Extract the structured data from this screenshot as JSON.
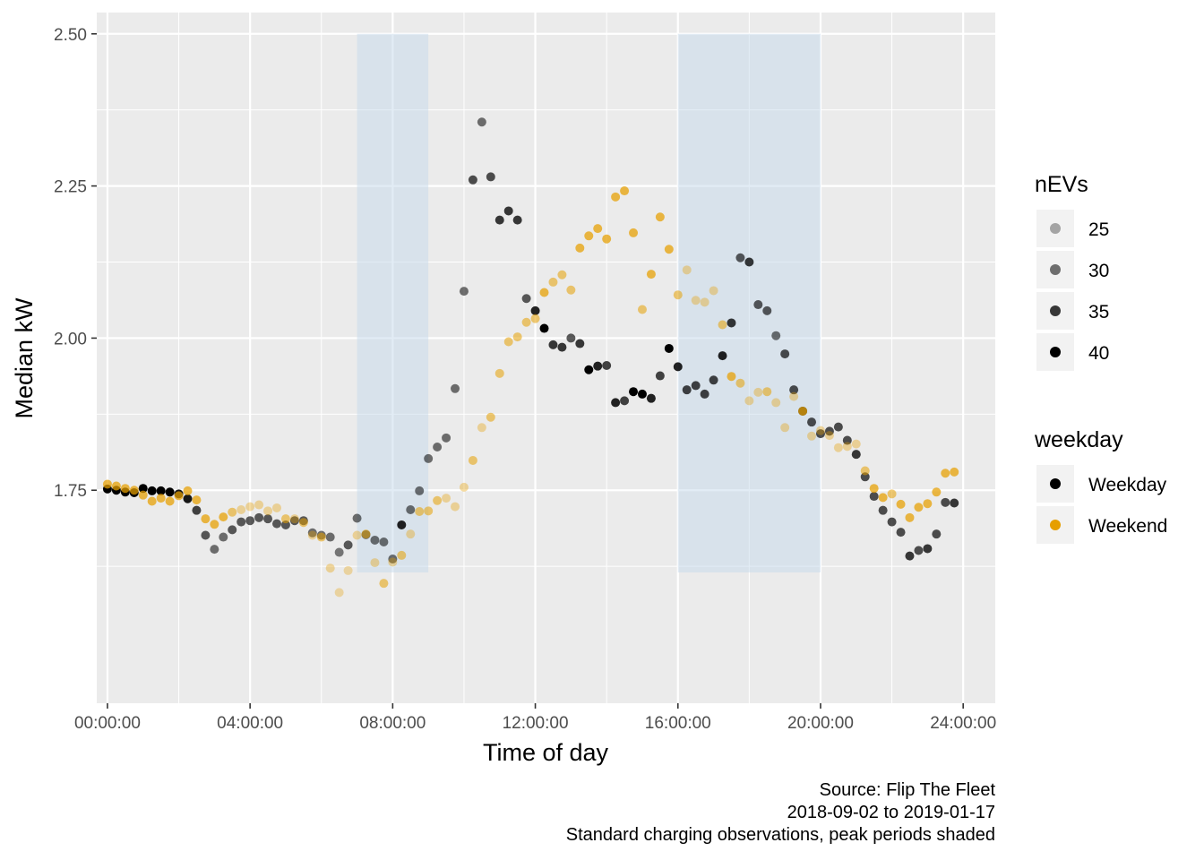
{
  "chart_data": {
    "type": "scatter",
    "xlabel": "Time of day",
    "ylabel": "Median kW",
    "xlim": [
      -0.3,
      24.9
    ],
    "ylim": [
      1.4,
      2.535
    ],
    "x_ticks": [
      {
        "value": 0,
        "label": "00:00:00"
      },
      {
        "value": 4,
        "label": "04:00:00"
      },
      {
        "value": 8,
        "label": "08:00:00"
      },
      {
        "value": 12,
        "label": "12:00:00"
      },
      {
        "value": 16,
        "label": "16:00:00"
      },
      {
        "value": 20,
        "label": "20:00:00"
      },
      {
        "value": 24,
        "label": "24:00:00"
      }
    ],
    "y_ticks": [
      {
        "value": 1.75,
        "label": "1.75"
      },
      {
        "value": 2.0,
        "label": "2.00"
      },
      {
        "value": 2.25,
        "label": "2.25"
      },
      {
        "value": 2.5,
        "label": "2.50"
      }
    ],
    "grid": true,
    "shaded_periods": [
      {
        "x0": 7,
        "x1": 9,
        "y0": 1.615,
        "y1": 2.5
      },
      {
        "x0": 16,
        "x1": 20,
        "y0": 1.615,
        "y1": 2.5
      }
    ],
    "series": [
      {
        "name": "Weekday",
        "color": "#000000",
        "points": [
          [
            0.0,
            1.752,
            40
          ],
          [
            0.25,
            1.75,
            40
          ],
          [
            0.5,
            1.747,
            40
          ],
          [
            0.75,
            1.746,
            40
          ],
          [
            1.0,
            1.753,
            40
          ],
          [
            1.25,
            1.749,
            40
          ],
          [
            1.5,
            1.749,
            40
          ],
          [
            1.75,
            1.747,
            40
          ],
          [
            2.0,
            1.744,
            38
          ],
          [
            2.25,
            1.736,
            38
          ],
          [
            2.5,
            1.717,
            34
          ],
          [
            2.75,
            1.676,
            32
          ],
          [
            3.0,
            1.653,
            30
          ],
          [
            3.25,
            1.673,
            30
          ],
          [
            3.5,
            1.685,
            32
          ],
          [
            3.75,
            1.698,
            32
          ],
          [
            4.0,
            1.7,
            32
          ],
          [
            4.25,
            1.705,
            32
          ],
          [
            4.5,
            1.703,
            32
          ],
          [
            4.75,
            1.695,
            32
          ],
          [
            5.0,
            1.693,
            32
          ],
          [
            5.25,
            1.7,
            32
          ],
          [
            5.5,
            1.7,
            32
          ],
          [
            5.75,
            1.68,
            30
          ],
          [
            6.0,
            1.676,
            30
          ],
          [
            6.25,
            1.673,
            30
          ],
          [
            6.5,
            1.648,
            29
          ],
          [
            6.75,
            1.66,
            32
          ],
          [
            7.0,
            1.704,
            30
          ],
          [
            7.25,
            1.677,
            30
          ],
          [
            7.5,
            1.668,
            30
          ],
          [
            7.75,
            1.665,
            30
          ],
          [
            8.0,
            1.637,
            30
          ],
          [
            8.25,
            1.693,
            37
          ],
          [
            8.5,
            1.718,
            30
          ],
          [
            8.75,
            1.749,
            30
          ],
          [
            9.0,
            1.802,
            30
          ],
          [
            9.25,
            1.821,
            30
          ],
          [
            9.5,
            1.836,
            30
          ],
          [
            9.75,
            1.917,
            30
          ],
          [
            10.0,
            2.077,
            30
          ],
          [
            10.25,
            2.26,
            33
          ],
          [
            10.5,
            2.355,
            30
          ],
          [
            10.75,
            2.265,
            33
          ],
          [
            11.0,
            2.194,
            35
          ],
          [
            11.25,
            2.209,
            35
          ],
          [
            11.5,
            2.194,
            35
          ],
          [
            11.75,
            2.065,
            32
          ],
          [
            12.0,
            2.045,
            37
          ],
          [
            12.25,
            2.016,
            40
          ],
          [
            12.5,
            1.989,
            35
          ],
          [
            12.75,
            1.985,
            35
          ],
          [
            13.0,
            2.0,
            32
          ],
          [
            13.25,
            1.991,
            35
          ],
          [
            13.5,
            1.948,
            40
          ],
          [
            13.75,
            1.954,
            37
          ],
          [
            14.0,
            1.955,
            34
          ],
          [
            14.25,
            1.894,
            37
          ],
          [
            14.5,
            1.897,
            34
          ],
          [
            14.75,
            1.912,
            40
          ],
          [
            15.0,
            1.908,
            40
          ],
          [
            15.25,
            1.901,
            37
          ],
          [
            15.5,
            1.938,
            34
          ],
          [
            15.75,
            1.983,
            40
          ],
          [
            16.0,
            1.953,
            37
          ],
          [
            16.25,
            1.915,
            34
          ],
          [
            16.5,
            1.922,
            34
          ],
          [
            16.75,
            1.908,
            34
          ],
          [
            17.0,
            1.931,
            34
          ],
          [
            17.25,
            1.971,
            37
          ],
          [
            17.5,
            2.025,
            35
          ],
          [
            17.75,
            2.132,
            32
          ],
          [
            18.0,
            2.125,
            35
          ],
          [
            18.25,
            2.055,
            32
          ],
          [
            18.5,
            2.045,
            32
          ],
          [
            18.75,
            2.004,
            30
          ],
          [
            19.0,
            1.974,
            33
          ],
          [
            19.25,
            1.915,
            33
          ],
          [
            19.5,
            1.88,
            35
          ],
          [
            19.75,
            1.862,
            33
          ],
          [
            20.0,
            1.843,
            33
          ],
          [
            20.25,
            1.847,
            33
          ],
          [
            20.5,
            1.854,
            33
          ],
          [
            20.75,
            1.832,
            33
          ],
          [
            21.0,
            1.809,
            35
          ],
          [
            21.25,
            1.772,
            33
          ],
          [
            21.5,
            1.74,
            33
          ],
          [
            21.75,
            1.717,
            33
          ],
          [
            22.0,
            1.698,
            33
          ],
          [
            22.25,
            1.681,
            33
          ],
          [
            22.5,
            1.642,
            35
          ],
          [
            22.75,
            1.651,
            33
          ],
          [
            23.0,
            1.654,
            35
          ],
          [
            23.25,
            1.678,
            33
          ],
          [
            23.5,
            1.73,
            33
          ],
          [
            23.75,
            1.729,
            35
          ]
        ]
      },
      {
        "name": "Weekend",
        "color": "#e69f00",
        "points": [
          [
            0.0,
            1.76,
            34
          ],
          [
            0.25,
            1.757,
            34
          ],
          [
            0.5,
            1.753,
            34
          ],
          [
            0.75,
            1.75,
            34
          ],
          [
            1.0,
            1.742,
            34
          ],
          [
            1.25,
            1.732,
            34
          ],
          [
            1.5,
            1.737,
            34
          ],
          [
            1.75,
            1.732,
            34
          ],
          [
            2.0,
            1.741,
            34
          ],
          [
            2.25,
            1.749,
            34
          ],
          [
            2.5,
            1.734,
            34
          ],
          [
            2.75,
            1.703,
            34
          ],
          [
            3.0,
            1.694,
            34
          ],
          [
            3.25,
            1.706,
            34
          ],
          [
            3.5,
            1.714,
            30
          ],
          [
            3.75,
            1.718,
            26
          ],
          [
            4.0,
            1.723,
            26
          ],
          [
            4.25,
            1.726,
            26
          ],
          [
            4.5,
            1.716,
            26
          ],
          [
            4.75,
            1.721,
            26
          ],
          [
            5.0,
            1.703,
            30
          ],
          [
            5.25,
            1.703,
            26
          ],
          [
            5.5,
            1.697,
            30
          ],
          [
            5.75,
            1.676,
            26
          ],
          [
            6.0,
            1.673,
            30
          ],
          [
            6.25,
            1.622,
            26
          ],
          [
            6.5,
            1.582,
            25
          ],
          [
            6.75,
            1.618,
            25
          ],
          [
            7.0,
            1.676,
            26
          ],
          [
            7.25,
            1.678,
            30
          ],
          [
            7.5,
            1.631,
            26
          ],
          [
            7.75,
            1.597,
            30
          ],
          [
            8.0,
            1.632,
            26
          ],
          [
            8.25,
            1.643,
            30
          ],
          [
            8.5,
            1.678,
            26
          ],
          [
            8.75,
            1.715,
            30
          ],
          [
            9.0,
            1.716,
            30
          ],
          [
            9.25,
            1.733,
            30
          ],
          [
            9.5,
            1.737,
            26
          ],
          [
            9.75,
            1.723,
            26
          ],
          [
            10.0,
            1.755,
            26
          ],
          [
            10.25,
            1.799,
            30
          ],
          [
            10.5,
            1.853,
            26
          ],
          [
            10.75,
            1.87,
            30
          ],
          [
            11.0,
            1.942,
            30
          ],
          [
            11.25,
            1.994,
            30
          ],
          [
            11.5,
            2.002,
            30
          ],
          [
            11.75,
            2.026,
            30
          ],
          [
            12.0,
            2.032,
            30
          ],
          [
            12.25,
            2.075,
            34
          ],
          [
            12.5,
            2.092,
            30
          ],
          [
            12.75,
            2.104,
            30
          ],
          [
            13.0,
            2.079,
            30
          ],
          [
            13.25,
            2.148,
            34
          ],
          [
            13.5,
            2.168,
            34
          ],
          [
            13.75,
            2.18,
            34
          ],
          [
            14.0,
            2.163,
            34
          ],
          [
            14.25,
            2.232,
            34
          ],
          [
            14.5,
            2.242,
            34
          ],
          [
            14.75,
            2.173,
            34
          ],
          [
            15.0,
            2.047,
            30
          ],
          [
            15.25,
            2.105,
            34
          ],
          [
            15.5,
            2.199,
            34
          ],
          [
            15.75,
            2.146,
            34
          ],
          [
            16.0,
            2.071,
            30
          ],
          [
            16.25,
            2.112,
            26
          ],
          [
            16.5,
            2.062,
            26
          ],
          [
            16.75,
            2.059,
            26
          ],
          [
            17.0,
            2.078,
            26
          ],
          [
            17.25,
            2.022,
            30
          ],
          [
            17.5,
            1.937,
            34
          ],
          [
            17.75,
            1.926,
            30
          ],
          [
            18.0,
            1.897,
            26
          ],
          [
            18.25,
            1.911,
            26
          ],
          [
            18.5,
            1.912,
            30
          ],
          [
            18.75,
            1.894,
            26
          ],
          [
            19.0,
            1.853,
            26
          ],
          [
            19.25,
            1.904,
            26
          ],
          [
            19.5,
            1.88,
            34
          ],
          [
            19.75,
            1.839,
            26
          ],
          [
            20.0,
            1.848,
            26
          ],
          [
            20.25,
            1.84,
            26
          ],
          [
            20.5,
            1.82,
            26
          ],
          [
            20.75,
            1.822,
            26
          ],
          [
            21.0,
            1.826,
            26
          ],
          [
            21.25,
            1.782,
            30
          ],
          [
            21.5,
            1.753,
            34
          ],
          [
            21.75,
            1.738,
            34
          ],
          [
            22.0,
            1.744,
            30
          ],
          [
            22.25,
            1.727,
            34
          ],
          [
            22.5,
            1.705,
            34
          ],
          [
            22.75,
            1.722,
            34
          ],
          [
            23.0,
            1.728,
            34
          ],
          [
            23.25,
            1.747,
            34
          ],
          [
            23.5,
            1.778,
            34
          ],
          [
            23.75,
            1.78,
            34
          ]
        ]
      }
    ],
    "legends": [
      {
        "title": "nEVs",
        "position": "right",
        "entries": [
          {
            "label": "25",
            "value": 25
          },
          {
            "label": "30",
            "value": 30
          },
          {
            "label": "35",
            "value": 35
          },
          {
            "label": "40",
            "value": 40
          }
        ]
      },
      {
        "title": "weekday",
        "position": "right",
        "entries": [
          {
            "label": "Weekday",
            "color": "#000000"
          },
          {
            "label": "Weekend",
            "color": "#e69f00"
          }
        ]
      }
    ],
    "caption": [
      "Source: Flip The Fleet",
      "2018-09-02 to 2019-01-17",
      "Standard charging observations, peak periods shaded"
    ]
  }
}
